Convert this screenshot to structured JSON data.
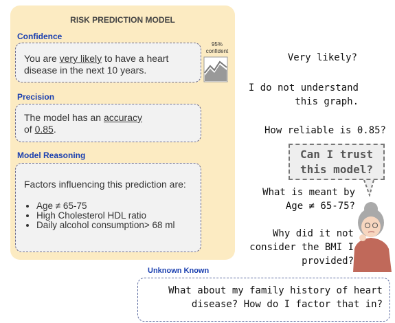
{
  "panel": {
    "title": "RISK PREDICTION MODEL",
    "confidence": {
      "heading": "Confidence",
      "text": [
        "You are ",
        "very likely",
        " to have a heart disease in the next 10 years."
      ],
      "badge": [
        "95%",
        "confident"
      ]
    },
    "precision": {
      "heading": "Precision",
      "text": [
        "The model has an ",
        "accuracy",
        "of ",
        "0.85",
        "."
      ]
    },
    "reasoning": {
      "heading": "Model Reasoning",
      "intro": "Factors influencing this prediction are:",
      "factors": [
        "Age ≠ 65-75",
        "High Cholesterol HDL ratio",
        "Daily alcohol consumption> 68 ml"
      ]
    }
  },
  "questions": [
    [
      "Very likely?"
    ],
    [
      "I do not understand",
      "this graph."
    ],
    [
      "How reliable is 0.85?"
    ],
    [
      "What is meant by",
      "Age ≠ 65-75?"
    ],
    [
      "Why did it not",
      "consider the BMI I",
      "provided?"
    ]
  ],
  "thought": [
    "Can I trust",
    "this model?"
  ],
  "unknown": {
    "heading": "Unknown Known",
    "lines": [
      "What about my family history of heart",
      "disease? How do I factor that in?"
    ]
  }
}
